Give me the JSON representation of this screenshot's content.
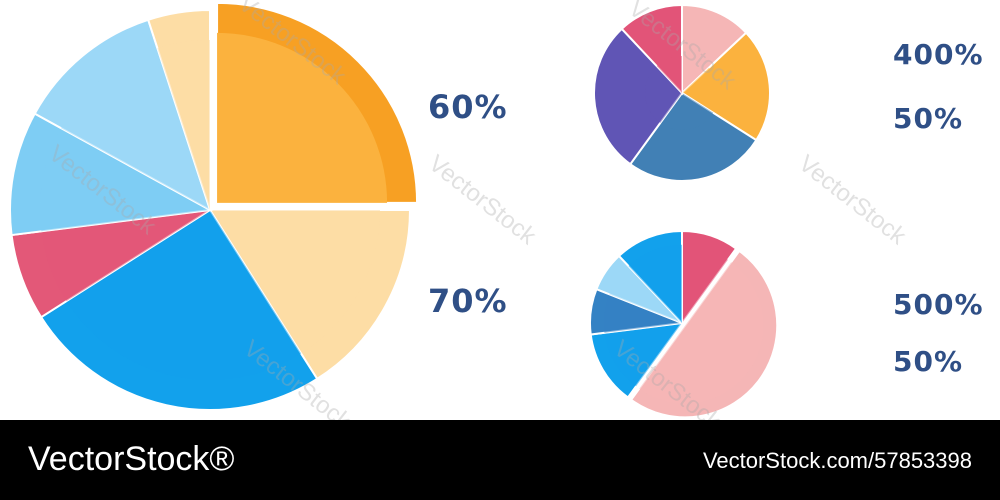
{
  "colors": {
    "text": "#2f4f86",
    "footer_bg": "#000000",
    "footer_text": "#ffffff"
  },
  "chart_data": [
    {
      "type": "pie",
      "slices": [
        {
          "color": "#fbb23e",
          "accent": "#f7a023",
          "share": 0.25
        },
        {
          "color": "#fddda5",
          "share": 0.16
        },
        {
          "color": "#12a1ec",
          "share": 0.25
        },
        {
          "color": "#e35878",
          "share": 0.07
        },
        {
          "color": "#7ecdf4",
          "share": 0.1
        },
        {
          "color": "#9cd8f7",
          "share": 0.12
        },
        {
          "color": "#fddda5",
          "share": 0.05
        }
      ]
    },
    {
      "type": "pie",
      "slices": [
        {
          "color": "#f5b6b6",
          "share": 0.13
        },
        {
          "color": "#fbb23e",
          "share": 0.21
        },
        {
          "color": "#4180b5",
          "share": 0.26
        },
        {
          "color": "#6055b5",
          "share": 0.28
        },
        {
          "color": "#e25478",
          "share": 0.12
        }
      ]
    },
    {
      "type": "pie",
      "slices": [
        {
          "color": "#e25478",
          "share": 0.1
        },
        {
          "color": "#f5b6b6",
          "share": 0.5
        },
        {
          "color": "#12a1ec",
          "share": 0.13
        },
        {
          "color": "#3482c4",
          "share": 0.08
        },
        {
          "color": "#9cd8f7",
          "share": 0.07
        },
        {
          "color": "#12a1ec",
          "share": 0.12
        }
      ]
    }
  ],
  "labels": {
    "big_top": "60%",
    "big_bottom": "70%",
    "small_top_1": "400%",
    "small_top_2": "50%",
    "small_bottom_1": "500%",
    "small_bottom_2": "50%"
  },
  "watermark": "VectorStock",
  "footer": {
    "brand": "VectorStock®",
    "image_id": "VectorStock.com/57853398"
  }
}
